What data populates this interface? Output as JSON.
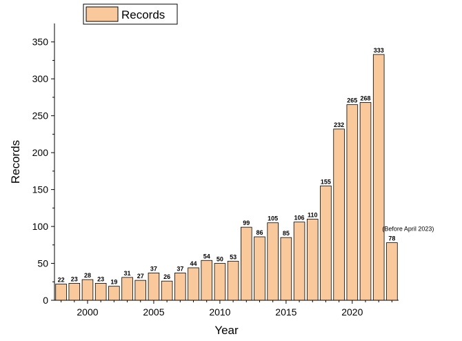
{
  "chart_data": {
    "type": "bar",
    "xlabel": "Year",
    "ylabel": "Records",
    "ylim": [
      0,
      375
    ],
    "xlim": [
      1997.5,
      2023.5
    ],
    "grid": false,
    "legend": {
      "position": "top-left",
      "entries": [
        "Records"
      ]
    },
    "bar_color": "#F9C99C",
    "bar_edge_color": "#000000",
    "x": [
      1998,
      1999,
      2000,
      2001,
      2002,
      2003,
      2004,
      2005,
      2006,
      2007,
      2008,
      2009,
      2010,
      2011,
      2012,
      2013,
      2014,
      2015,
      2016,
      2017,
      2018,
      2019,
      2020,
      2021,
      2022,
      2023
    ],
    "series": [
      {
        "name": "Records",
        "values": [
          22,
          23,
          28,
          23,
          19,
          31,
          27,
          37,
          26,
          37,
          44,
          54,
          50,
          53,
          99,
          86,
          105,
          85,
          106,
          110,
          155,
          232,
          265,
          268,
          333,
          78
        ]
      }
    ],
    "x_ticks": [
      "2000",
      "2005",
      "2010",
      "2015",
      "2020"
    ],
    "y_ticks": [
      "0",
      "50",
      "100",
      "150",
      "200",
      "250",
      "300",
      "350"
    ],
    "annotations": [
      {
        "x": 2023,
        "text": "(Before April 2023)"
      }
    ]
  }
}
